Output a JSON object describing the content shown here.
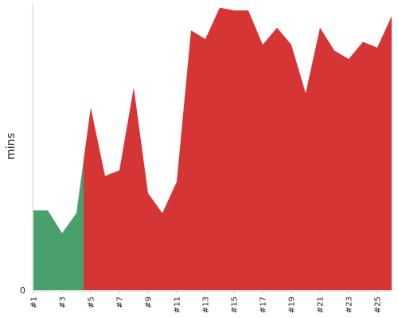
{
  "chart_data": {
    "type": "area",
    "title": "",
    "xlabel": "",
    "ylabel": "mins",
    "y_tick_labels": [
      "0"
    ],
    "ylim": [
      0,
      100
    ],
    "x": [
      "#1",
      "#2",
      "#3",
      "#4",
      "#5",
      "#6",
      "#7",
      "#8",
      "#9",
      "#10",
      "#11",
      "#12",
      "#13",
      "#14",
      "#15",
      "#16",
      "#17",
      "#18",
      "#19",
      "#20",
      "#21",
      "#22",
      "#23",
      "#24",
      "#25",
      "#26"
    ],
    "visible_tick_labels": [
      "#1",
      "#3",
      "#5",
      "#7",
      "#9",
      "#11",
      "#13",
      "#15",
      "#17",
      "#19",
      "#21",
      "#23",
      "#25"
    ],
    "values": [
      28,
      28,
      20,
      27,
      64,
      40,
      42,
      71,
      34,
      27,
      38,
      91,
      88,
      99,
      98,
      98,
      86,
      92,
      86,
      69,
      92,
      84,
      81,
      87,
      85,
      96
    ],
    "segments": [
      {
        "from": "#1",
        "to": "#4.5",
        "color": "#4aa06c"
      },
      {
        "from": "#4.5",
        "to": "#26",
        "color": "#d63535"
      }
    ],
    "colors": {
      "good": "#4aa06c",
      "bad": "#d63535",
      "axis": "#cccccc",
      "text": "#222222"
    },
    "grid": false,
    "legend": "none"
  }
}
